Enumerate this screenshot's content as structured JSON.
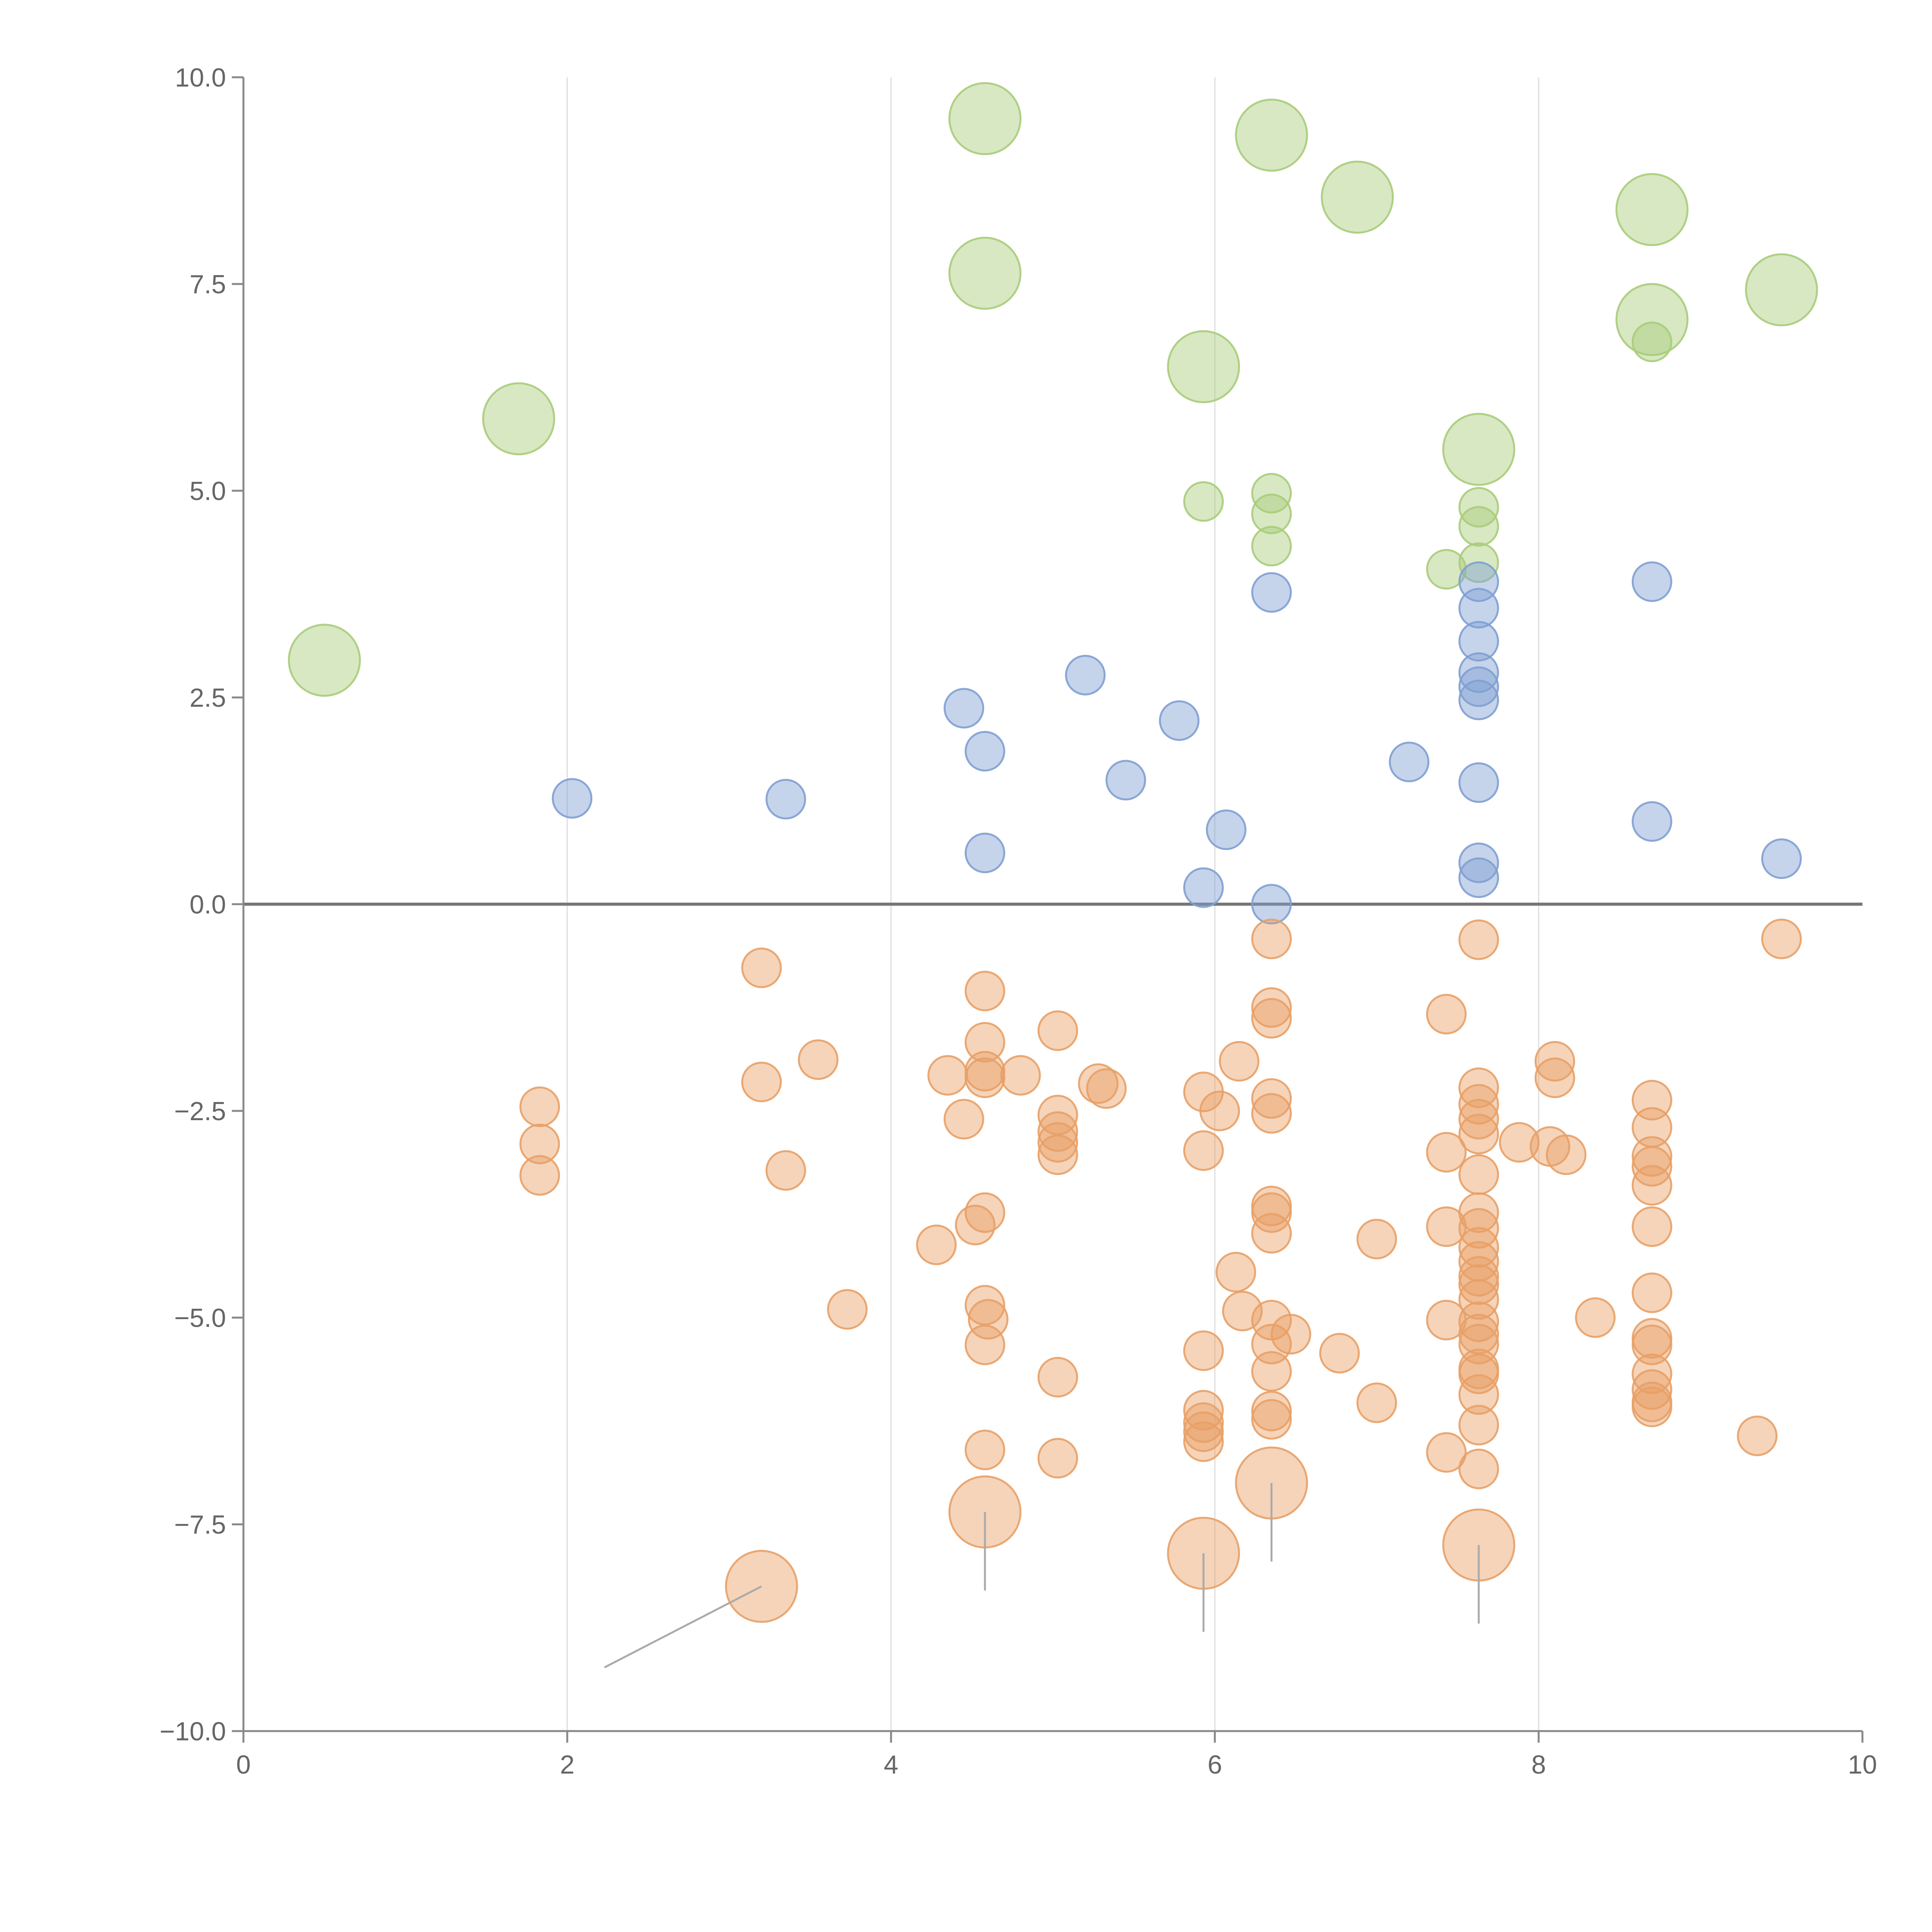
{
  "chart_data": {
    "type": "scatter",
    "title": "",
    "xlabel": "",
    "ylabel": "",
    "xlim": [
      0,
      10
    ],
    "ylim": [
      -10,
      10
    ],
    "x_ticks": [
      0,
      2,
      4,
      6,
      8,
      10
    ],
    "x_tick_labels": [
      "0",
      "2",
      "4",
      "6",
      "8",
      "10"
    ],
    "y_ticks": [
      10,
      7.5,
      5,
      2.5,
      0,
      -2.5,
      -5,
      -7.5,
      -10
    ],
    "y_tick_labels": [
      "10.0",
      "7.5",
      "5.0",
      "2.5",
      "0.0",
      "−2.5",
      "−5.0",
      "−7.5",
      "−10.0"
    ],
    "vertical_gridlines": [
      2,
      4,
      6,
      8
    ],
    "zero_line": 0,
    "legend": "none",
    "colors": {
      "green": "#a8cc7a",
      "blue": "#7f9fd2",
      "orange": "#e8a066",
      "axis": "#888888",
      "grid": "#dddddd",
      "zero": "#777777",
      "leader": "#aaaaaa"
    },
    "series": [
      {
        "name": "green",
        "color": "#a8cc7a",
        "points": [
          {
            "x": 0.5,
            "y": 2.95,
            "s": "l"
          },
          {
            "x": 1.7,
            "y": 5.87,
            "s": "l"
          },
          {
            "x": 4.58,
            "y": 9.5,
            "s": "l"
          },
          {
            "x": 4.58,
            "y": 7.63,
            "s": "l"
          },
          {
            "x": 5.93,
            "y": 6.5,
            "s": "l"
          },
          {
            "x": 6.35,
            "y": 9.3,
            "s": "l"
          },
          {
            "x": 6.88,
            "y": 8.55,
            "s": "l"
          },
          {
            "x": 7.63,
            "y": 5.5,
            "s": "l"
          },
          {
            "x": 8.7,
            "y": 8.4,
            "s": "l"
          },
          {
            "x": 8.7,
            "y": 7.07,
            "s": "l"
          },
          {
            "x": 9.5,
            "y": 7.43,
            "s": "l"
          },
          {
            "x": 5.93,
            "y": 4.87
          },
          {
            "x": 6.35,
            "y": 4.97
          },
          {
            "x": 6.35,
            "y": 4.72
          },
          {
            "x": 6.35,
            "y": 4.33
          },
          {
            "x": 7.43,
            "y": 4.05
          },
          {
            "x": 7.63,
            "y": 4.8
          },
          {
            "x": 7.63,
            "y": 4.57
          },
          {
            "x": 7.63,
            "y": 4.13
          },
          {
            "x": 8.7,
            "y": 6.8
          }
        ]
      },
      {
        "name": "blue",
        "color": "#7f9fd2",
        "points": [
          {
            "x": 2.03,
            "y": 1.28
          },
          {
            "x": 3.35,
            "y": 1.27
          },
          {
            "x": 4.45,
            "y": 2.37
          },
          {
            "x": 4.58,
            "y": 1.85
          },
          {
            "x": 4.58,
            "y": 0.62
          },
          {
            "x": 5.2,
            "y": 2.77
          },
          {
            "x": 5.45,
            "y": 1.5
          },
          {
            "x": 5.78,
            "y": 2.22
          },
          {
            "x": 5.93,
            "y": 0.2
          },
          {
            "x": 6.07,
            "y": 0.9
          },
          {
            "x": 6.35,
            "y": 3.77
          },
          {
            "x": 6.35,
            "y": 0.0
          },
          {
            "x": 7.2,
            "y": 1.72
          },
          {
            "x": 7.63,
            "y": 3.9
          },
          {
            "x": 7.63,
            "y": 3.58
          },
          {
            "x": 7.63,
            "y": 3.18
          },
          {
            "x": 7.63,
            "y": 2.8
          },
          {
            "x": 7.63,
            "y": 2.63
          },
          {
            "x": 7.63,
            "y": 2.47
          },
          {
            "x": 7.63,
            "y": 1.47
          },
          {
            "x": 7.63,
            "y": 0.5
          },
          {
            "x": 7.63,
            "y": 0.32
          },
          {
            "x": 8.7,
            "y": 3.9
          },
          {
            "x": 8.7,
            "y": 1.0
          },
          {
            "x": 9.5,
            "y": 0.55
          }
        ]
      },
      {
        "name": "orange",
        "color": "#e8a066",
        "points": [
          {
            "x": 3.2,
            "y": -8.25,
            "s": "l"
          },
          {
            "x": 4.58,
            "y": -7.35,
            "s": "l"
          },
          {
            "x": 5.93,
            "y": -7.85,
            "s": "l"
          },
          {
            "x": 6.35,
            "y": -7.0,
            "s": "l"
          },
          {
            "x": 7.63,
            "y": -7.75,
            "s": "l"
          },
          {
            "x": 1.83,
            "y": -2.45
          },
          {
            "x": 1.83,
            "y": -2.9
          },
          {
            "x": 1.83,
            "y": -3.28
          },
          {
            "x": 3.2,
            "y": -0.77
          },
          {
            "x": 3.2,
            "y": -2.15
          },
          {
            "x": 3.35,
            "y": -3.22
          },
          {
            "x": 3.55,
            "y": -1.88
          },
          {
            "x": 3.73,
            "y": -4.9
          },
          {
            "x": 4.28,
            "y": -4.12
          },
          {
            "x": 4.35,
            "y": -2.07
          },
          {
            "x": 4.45,
            "y": -2.6
          },
          {
            "x": 4.52,
            "y": -3.88
          },
          {
            "x": 4.58,
            "y": -1.05
          },
          {
            "x": 4.58,
            "y": -1.67
          },
          {
            "x": 4.58,
            "y": -2.02
          },
          {
            "x": 4.58,
            "y": -2.1
          },
          {
            "x": 4.58,
            "y": -3.73
          },
          {
            "x": 4.58,
            "y": -4.85
          },
          {
            "x": 4.6,
            "y": -5.02
          },
          {
            "x": 4.58,
            "y": -5.33
          },
          {
            "x": 4.58,
            "y": -6.6
          },
          {
            "x": 4.8,
            "y": -2.07
          },
          {
            "x": 5.03,
            "y": -1.53
          },
          {
            "x": 5.03,
            "y": -2.55
          },
          {
            "x": 5.03,
            "y": -2.75
          },
          {
            "x": 5.03,
            "y": -2.88
          },
          {
            "x": 5.03,
            "y": -3.03
          },
          {
            "x": 5.03,
            "y": -5.72
          },
          {
            "x": 5.03,
            "y": -6.7
          },
          {
            "x": 5.28,
            "y": -2.17
          },
          {
            "x": 5.33,
            "y": -2.23
          },
          {
            "x": 5.93,
            "y": -2.27
          },
          {
            "x": 5.93,
            "y": -2.98
          },
          {
            "x": 5.93,
            "y": -5.4
          },
          {
            "x": 5.93,
            "y": -6.12
          },
          {
            "x": 5.93,
            "y": -6.27
          },
          {
            "x": 5.93,
            "y": -6.38
          },
          {
            "x": 5.93,
            "y": -6.5
          },
          {
            "x": 6.03,
            "y": -2.5
          },
          {
            "x": 6.13,
            "y": -4.45
          },
          {
            "x": 6.15,
            "y": -1.9
          },
          {
            "x": 6.17,
            "y": -4.92
          },
          {
            "x": 6.35,
            "y": -0.42
          },
          {
            "x": 6.35,
            "y": -1.25
          },
          {
            "x": 6.35,
            "y": -1.38
          },
          {
            "x": 6.35,
            "y": -2.35
          },
          {
            "x": 6.35,
            "y": -2.53
          },
          {
            "x": 6.35,
            "y": -3.65
          },
          {
            "x": 6.35,
            "y": -3.73
          },
          {
            "x": 6.35,
            "y": -3.98
          },
          {
            "x": 6.35,
            "y": -5.03
          },
          {
            "x": 6.35,
            "y": -5.32
          },
          {
            "x": 6.35,
            "y": -5.65
          },
          {
            "x": 6.35,
            "y": -6.13
          },
          {
            "x": 6.35,
            "y": -6.23
          },
          {
            "x": 6.47,
            "y": -5.2
          },
          {
            "x": 6.77,
            "y": -5.43
          },
          {
            "x": 7.0,
            "y": -4.05
          },
          {
            "x": 7.0,
            "y": -6.03
          },
          {
            "x": 7.43,
            "y": -1.33
          },
          {
            "x": 7.43,
            "y": -3.0
          },
          {
            "x": 7.43,
            "y": -3.9
          },
          {
            "x": 7.43,
            "y": -5.03
          },
          {
            "x": 7.43,
            "y": -6.63
          },
          {
            "x": 7.63,
            "y": -0.43
          },
          {
            "x": 7.63,
            "y": -2.22
          },
          {
            "x": 7.63,
            "y": -2.42
          },
          {
            "x": 7.63,
            "y": -2.6
          },
          {
            "x": 7.63,
            "y": -2.78
          },
          {
            "x": 7.63,
            "y": -3.27
          },
          {
            "x": 7.63,
            "y": -3.73
          },
          {
            "x": 7.63,
            "y": -3.92
          },
          {
            "x": 7.63,
            "y": -4.15
          },
          {
            "x": 7.63,
            "y": -4.32
          },
          {
            "x": 7.63,
            "y": -4.5
          },
          {
            "x": 7.63,
            "y": -4.6
          },
          {
            "x": 7.63,
            "y": -4.78
          },
          {
            "x": 7.63,
            "y": -5.05
          },
          {
            "x": 7.63,
            "y": -5.2
          },
          {
            "x": 7.63,
            "y": -5.32
          },
          {
            "x": 7.63,
            "y": -5.62
          },
          {
            "x": 7.63,
            "y": -5.68
          },
          {
            "x": 7.63,
            "y": -5.93
          },
          {
            "x": 7.63,
            "y": -6.3
          },
          {
            "x": 7.63,
            "y": -6.83
          },
          {
            "x": 7.88,
            "y": -2.88
          },
          {
            "x": 8.07,
            "y": -2.93
          },
          {
            "x": 8.1,
            "y": -1.9
          },
          {
            "x": 8.1,
            "y": -2.1
          },
          {
            "x": 8.17,
            "y": -3.03
          },
          {
            "x": 8.35,
            "y": -5.0
          },
          {
            "x": 8.7,
            "y": -2.37
          },
          {
            "x": 8.7,
            "y": -2.7
          },
          {
            "x": 8.7,
            "y": -3.05
          },
          {
            "x": 8.7,
            "y": -3.17
          },
          {
            "x": 8.7,
            "y": -3.4
          },
          {
            "x": 8.7,
            "y": -3.9
          },
          {
            "x": 8.7,
            "y": -4.7
          },
          {
            "x": 8.7,
            "y": -5.25
          },
          {
            "x": 8.7,
            "y": -5.33
          },
          {
            "x": 8.7,
            "y": -5.68
          },
          {
            "x": 8.7,
            "y": -5.87
          },
          {
            "x": 8.7,
            "y": -6.02
          },
          {
            "x": 8.7,
            "y": -6.08
          },
          {
            "x": 9.35,
            "y": -6.43
          },
          {
            "x": 9.5,
            "y": -0.42
          }
        ]
      }
    ],
    "leader_lines": [
      {
        "from": [
          3.2,
          -8.25
        ],
        "to": [
          2.23,
          -9.23
        ]
      },
      {
        "from": [
          4.58,
          -7.35
        ],
        "to": [
          4.58,
          -8.3
        ]
      },
      {
        "from": [
          5.93,
          -7.85
        ],
        "to": [
          5.93,
          -8.8
        ]
      },
      {
        "from": [
          6.35,
          -7.0
        ],
        "to": [
          6.35,
          -7.95
        ]
      },
      {
        "from": [
          7.63,
          -7.75
        ],
        "to": [
          7.63,
          -8.7
        ]
      }
    ]
  }
}
